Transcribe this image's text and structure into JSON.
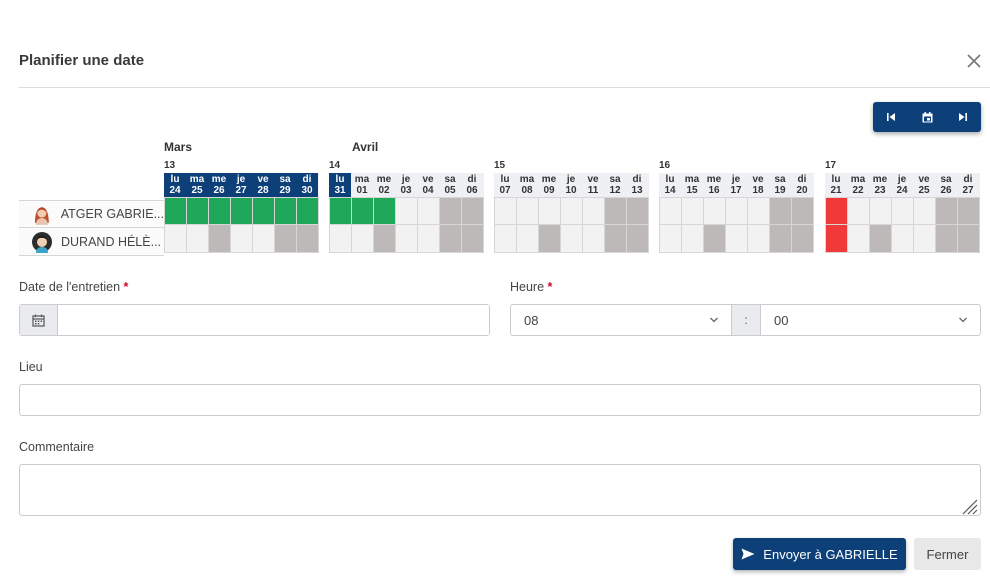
{
  "modal": {
    "title": "Planifier une date"
  },
  "calendar": {
    "months": [
      "Mars",
      "Avril"
    ],
    "weeks": [
      {
        "num": "13",
        "days": [
          [
            "lu",
            "24"
          ],
          [
            "ma",
            "25"
          ],
          [
            "me",
            "26"
          ],
          [
            "je",
            "27"
          ],
          [
            "ve",
            "28"
          ],
          [
            "sa",
            "29"
          ],
          [
            "di",
            "30"
          ]
        ],
        "current": [
          0,
          1,
          2,
          3,
          4,
          5,
          6
        ],
        "rows": [
          [
            "g",
            "g",
            "g",
            "g",
            "g",
            "g",
            "g"
          ],
          [
            "",
            "",
            "d",
            "",
            "",
            "d",
            "d"
          ]
        ]
      },
      {
        "num": "14",
        "days": [
          [
            "lu",
            "31"
          ],
          [
            "ma",
            "01"
          ],
          [
            "me",
            "02"
          ],
          [
            "je",
            "03"
          ],
          [
            "ve",
            "04"
          ],
          [
            "sa",
            "05"
          ],
          [
            "di",
            "06"
          ]
        ],
        "current": [
          0
        ],
        "rows": [
          [
            "g",
            "g",
            "g",
            "",
            "",
            "d",
            "d"
          ],
          [
            "",
            "",
            "d",
            "",
            "",
            "d",
            "d"
          ]
        ]
      },
      {
        "num": "15",
        "days": [
          [
            "lu",
            "07"
          ],
          [
            "ma",
            "08"
          ],
          [
            "me",
            "09"
          ],
          [
            "je",
            "10"
          ],
          [
            "ve",
            "11"
          ],
          [
            "sa",
            "12"
          ],
          [
            "di",
            "13"
          ]
        ],
        "current": [],
        "rows": [
          [
            "",
            "",
            "",
            "",
            "",
            "d",
            "d"
          ],
          [
            "",
            "",
            "d",
            "",
            "",
            "d",
            "d"
          ]
        ]
      },
      {
        "num": "16",
        "days": [
          [
            "lu",
            "14"
          ],
          [
            "ma",
            "15"
          ],
          [
            "me",
            "16"
          ],
          [
            "je",
            "17"
          ],
          [
            "ve",
            "18"
          ],
          [
            "sa",
            "19"
          ],
          [
            "di",
            "20"
          ]
        ],
        "current": [],
        "rows": [
          [
            "",
            "",
            "",
            "",
            "",
            "d",
            "d"
          ],
          [
            "",
            "",
            "d",
            "",
            "",
            "d",
            "d"
          ]
        ]
      },
      {
        "num": "17",
        "days": [
          [
            "lu",
            "21"
          ],
          [
            "ma",
            "22"
          ],
          [
            "me",
            "23"
          ],
          [
            "je",
            "24"
          ],
          [
            "ve",
            "25"
          ],
          [
            "sa",
            "26"
          ],
          [
            "di",
            "27"
          ]
        ],
        "current": [],
        "rows": [
          [
            "r",
            "",
            "",
            "",
            "",
            "d",
            "d"
          ],
          [
            "r",
            "",
            "d",
            "",
            "",
            "d",
            "d"
          ]
        ]
      }
    ],
    "people": [
      {
        "name": "ATGER GABRIE...",
        "avatar": "female-avatar-red-hair"
      },
      {
        "name": "DURAND HÉLÈ...",
        "avatar": "female-avatar-dark-hair"
      }
    ],
    "colors": {
      "available": "#20a85a",
      "unavailable": "#bdb9b9",
      "selected": "#f03a3a",
      "header": "#0d3f78"
    }
  },
  "form": {
    "date_label": "Date de l'entretien",
    "date_value": "",
    "required_mark": "*",
    "time_label": "Heure",
    "hour_value": "08",
    "time_separator": ":",
    "minute_value": "00",
    "place_label": "Lieu",
    "place_value": "",
    "comment_label": "Commentaire",
    "comment_value": ""
  },
  "footer": {
    "send_label": "Envoyer à GABRIELLE",
    "close_label": "Fermer"
  }
}
